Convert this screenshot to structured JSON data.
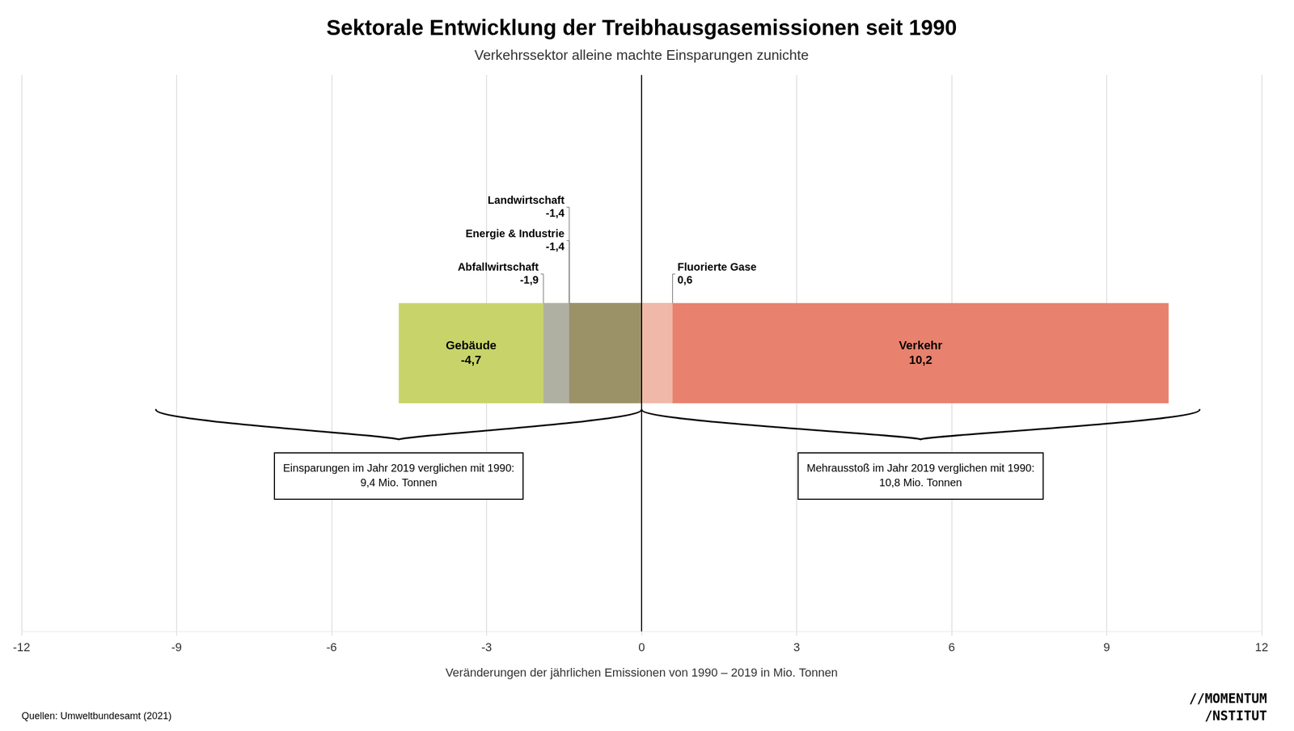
{
  "chart_data": {
    "type": "bar",
    "orientation": "horizontal",
    "title": "Sektorale Entwicklung der Treibhausgasemissionen seit 1990",
    "subtitle": "Verkehrssektor alleine machte Einsparungen zunichte",
    "xlabel": "Veränderungen der jährlichen Emissionen von 1990 – 2019 in Mio. Tonnen",
    "source": "Quellen: Umweltbundesamt (2021)",
    "logo": [
      "//MOMENTUM",
      "/NSTITUT"
    ],
    "categories": [
      null
    ],
    "series": [
      {
        "name": "Gebäude",
        "color": "#c8d46a",
        "values": [
          -4.7
        ],
        "value_labels": [
          "-4,7"
        ]
      },
      {
        "name": "Abfallwirtschaft",
        "color": "#b0b0a2",
        "values": [
          -1.9
        ],
        "value_labels": [
          "-1,9"
        ]
      },
      {
        "name": "Energie & Industrie",
        "color": "#7d8f72",
        "values": [
          -1.4
        ],
        "value_labels": [
          "-1,4"
        ]
      },
      {
        "name": "Landwirtschaft",
        "color": "#9b9268",
        "values": [
          -1.4
        ],
        "value_labels": [
          "-1,4"
        ]
      },
      {
        "name": "Verkehr",
        "color": "#e8816e",
        "values": [
          10.2
        ],
        "value_labels": [
          "10,2"
        ]
      },
      {
        "name": "Fluorierte Gase",
        "color": "#f0b8a8",
        "values": [
          0.6
        ],
        "value_labels": [
          "0,6"
        ]
      }
    ],
    "data_labels": true,
    "xlim": [
      -12,
      12
    ],
    "xticks": [
      -12,
      -9,
      -6,
      -3,
      0,
      3,
      6,
      9,
      12
    ],
    "grid": true,
    "tick_labels": "x",
    "annotations": [
      {
        "text": "Einsparungen im Jahr 2019 verglichen mit 1990:\n9,4 Mio. Tonnen",
        "x": [
          -9.4,
          0.0
        ]
      },
      {
        "text": "Mehrausstoß im Jahr 2019 verglichen mit 1990:\n10,8 Mio. Tonnen",
        "x": [
          0.0,
          10.8
        ]
      }
    ]
  }
}
